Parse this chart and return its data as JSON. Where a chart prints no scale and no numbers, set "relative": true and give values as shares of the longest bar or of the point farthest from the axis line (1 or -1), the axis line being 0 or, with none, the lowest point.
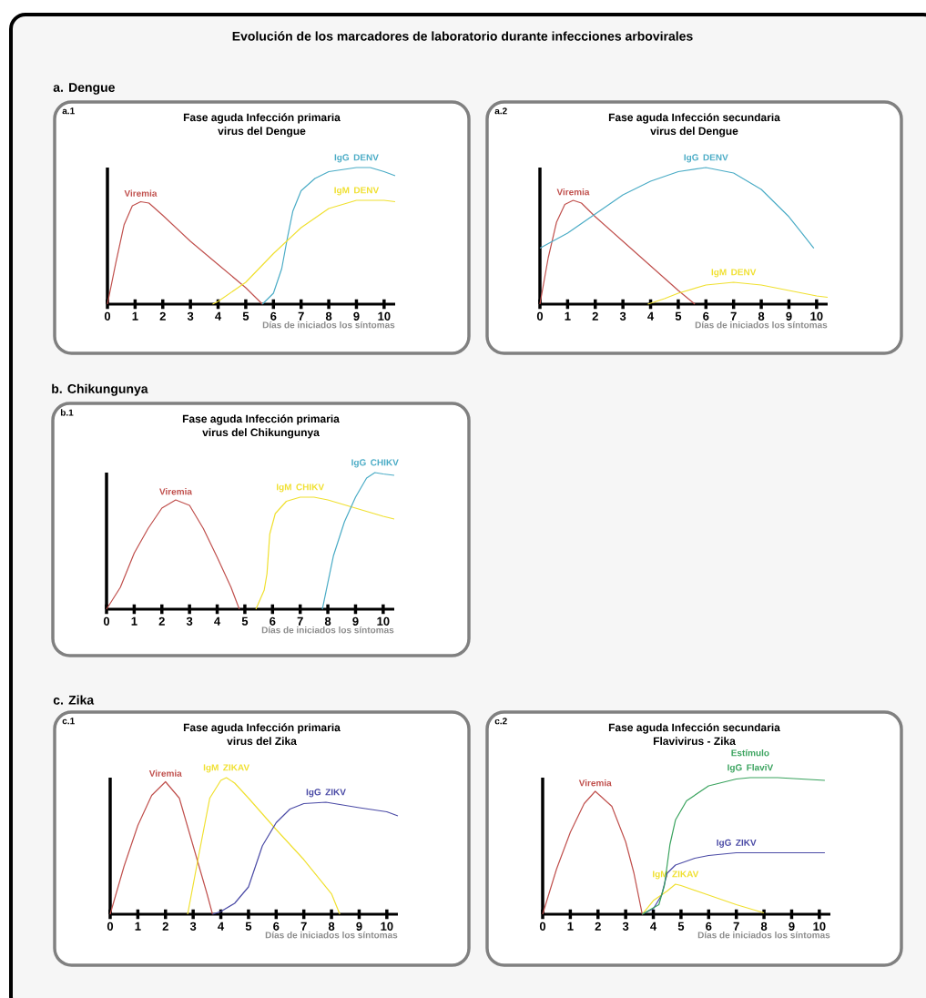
{
  "chart_data": [
    {
      "type": "line",
      "title": "Fase aguda Infección primaria",
      "subtitle": "virus del Dengue",
      "xlabel": "Días de iniciados los síntomas",
      "relative": true,
      "xlim": [
        0,
        10.4
      ],
      "xticks": [
        0,
        1,
        2,
        3,
        4,
        5,
        6,
        7,
        8,
        9,
        10
      ],
      "annotations": [
        "Evolución de los marcadores de laboratorio durante infecciones arbovirales",
        "a. Dengue",
        "a.1"
      ],
      "series": [
        {
          "name": "Viremia",
          "color": "#c0504d",
          "x": [
            0,
            0.3,
            0.6,
            0.9,
            1.2,
            1.5,
            2,
            3,
            4,
            5,
            5.6
          ],
          "values": [
            0,
            0.3,
            0.58,
            0.72,
            0.75,
            0.74,
            0.65,
            0.46,
            0.29,
            0.12,
            0
          ]
        },
        {
          "name": "IgG DENV",
          "color": "#4bacc6",
          "x": [
            5.6,
            6,
            6.3,
            6.5,
            6.7,
            7,
            7.5,
            8,
            9,
            9.5,
            10,
            10.4
          ],
          "values": [
            0,
            0.08,
            0.26,
            0.48,
            0.68,
            0.83,
            0.92,
            0.97,
            1,
            1,
            0.97,
            0.94
          ]
        },
        {
          "name": "IgM DENV",
          "color": "#f0e030",
          "x": [
            3.8,
            4,
            5,
            6,
            7,
            8,
            9,
            10,
            10.4
          ],
          "values": [
            0,
            0.02,
            0.16,
            0.37,
            0.56,
            0.7,
            0.76,
            0.76,
            0.75
          ]
        }
      ]
    },
    {
      "type": "line",
      "title": "Fase aguda Infección secundaria",
      "subtitle": "virus del Dengue",
      "xlabel": "Días de iniciados los síntomas",
      "relative": true,
      "xlim": [
        0,
        10.4
      ],
      "xticks": [
        0,
        1,
        2,
        3,
        4,
        5,
        6,
        7,
        8,
        9,
        10
      ],
      "annotations": [
        "a.2"
      ],
      "series": [
        {
          "name": "Viremia",
          "color": "#c0504d",
          "x": [
            0,
            0.3,
            0.6,
            0.9,
            1.2,
            1.5,
            2,
            3,
            4,
            5,
            5.6
          ],
          "values": [
            0,
            0.34,
            0.6,
            0.73,
            0.76,
            0.74,
            0.64,
            0.46,
            0.28,
            0.1,
            0
          ]
        },
        {
          "name": "IgG DENV",
          "color": "#4bacc6",
          "x": [
            0,
            1,
            2,
            3,
            4,
            5,
            6,
            7,
            8,
            9,
            9.9
          ],
          "values": [
            0.41,
            0.52,
            0.66,
            0.8,
            0.9,
            0.97,
            1,
            0.96,
            0.84,
            0.64,
            0.41
          ]
        },
        {
          "name": "IgM DENV",
          "color": "#f0e030",
          "x": [
            3.9,
            4.5,
            5,
            6,
            7,
            8,
            9,
            10,
            10.4
          ],
          "values": [
            0,
            0.04,
            0.08,
            0.14,
            0.16,
            0.14,
            0.1,
            0.06,
            0.05
          ]
        }
      ]
    },
    {
      "type": "line",
      "title": "Fase aguda Infección primaria",
      "subtitle": "virus del Chikungunya",
      "xlabel": "Días de iniciados los síntomas",
      "relative": true,
      "xlim": [
        0,
        10.4
      ],
      "xticks": [
        0,
        1,
        2,
        3,
        4,
        5,
        6,
        7,
        8,
        9,
        10
      ],
      "annotations": [
        "b. Chikungunya",
        "b.1"
      ],
      "series": [
        {
          "name": "Viremia",
          "color": "#c0504d",
          "x": [
            0,
            0.5,
            1,
            1.5,
            2,
            2.5,
            3,
            3.5,
            4,
            4.5,
            4.8
          ],
          "values": [
            0,
            0.16,
            0.41,
            0.59,
            0.74,
            0.8,
            0.76,
            0.59,
            0.38,
            0.16,
            0
          ]
        },
        {
          "name": "IgM CHIKV",
          "color": "#f0e030",
          "x": [
            5.4,
            5.7,
            5.8,
            5.9,
            6.1,
            6.5,
            7,
            7.5,
            8,
            9,
            10,
            10.4
          ],
          "values": [
            0,
            0.14,
            0.26,
            0.55,
            0.7,
            0.79,
            0.82,
            0.82,
            0.8,
            0.74,
            0.68,
            0.66
          ]
        },
        {
          "name": "IgG CHIKV",
          "color": "#4bacc6",
          "x": [
            7.8,
            8.2,
            8.6,
            9,
            9.4,
            9.7,
            10,
            10.4
          ],
          "values": [
            0,
            0.39,
            0.64,
            0.82,
            0.96,
            1,
            0.99,
            0.98
          ]
        }
      ]
    },
    {
      "type": "line",
      "title": "Fase aguda Infección primaria",
      "subtitle": "virus del Zika",
      "xlabel": "Días de iniciados los síntomas",
      "relative": true,
      "xlim": [
        0,
        10.4
      ],
      "xticks": [
        0,
        1,
        2,
        3,
        4,
        5,
        6,
        7,
        8,
        9,
        10
      ],
      "annotations": [
        "c. Zika",
        "c.1"
      ],
      "series": [
        {
          "name": "Viremia",
          "color": "#c0504d",
          "x": [
            0,
            0.5,
            1,
            1.5,
            2,
            2.5,
            3,
            3.5,
            3.7
          ],
          "values": [
            0,
            0.35,
            0.65,
            0.87,
            0.97,
            0.85,
            0.5,
            0.15,
            0
          ]
        },
        {
          "name": "IgM ZIKAV",
          "color": "#f0e030",
          "x": [
            2.8,
            3.2,
            3.6,
            4,
            4.2,
            4.5,
            5,
            6,
            7,
            8,
            8.3
          ],
          "values": [
            0,
            0.43,
            0.85,
            0.98,
            1,
            0.96,
            0.85,
            0.62,
            0.4,
            0.15,
            0
          ]
        },
        {
          "name": "IgG ZIKV",
          "color": "#4b4ba6",
          "x": [
            3.7,
            4,
            4.5,
            5,
            5.5,
            6,
            6.5,
            7,
            7.8,
            9,
            10,
            10.4
          ],
          "values": [
            0,
            0.02,
            0.08,
            0.2,
            0.5,
            0.67,
            0.77,
            0.81,
            0.82,
            0.78,
            0.75,
            0.72
          ]
        }
      ]
    },
    {
      "type": "line",
      "title": "Fase aguda Infección secundaria",
      "subtitle": "Flavivirus - Zika",
      "xlabel": "Días de iniciados los síntomas",
      "relative": true,
      "xlim": [
        0,
        10.4
      ],
      "xticks": [
        0,
        1,
        2,
        3,
        4,
        5,
        6,
        7,
        8,
        9,
        10
      ],
      "annotations": [
        "c.2"
      ],
      "series": [
        {
          "name": "Viremia",
          "color": "#c0504d",
          "x": [
            0,
            0.5,
            1,
            1.5,
            1.9,
            2.5,
            3,
            3.3,
            3.6
          ],
          "values": [
            0,
            0.33,
            0.6,
            0.81,
            0.9,
            0.79,
            0.53,
            0.3,
            0
          ]
        },
        {
          "name": "IgM ZIKAV",
          "color": "#f0e030",
          "x": [
            3.6,
            4,
            4.5,
            4.8,
            5,
            6,
            7,
            8
          ],
          "values": [
            0,
            0.1,
            0.17,
            0.22,
            0.21,
            0.14,
            0.07,
            0.01
          ]
        },
        {
          "name": "IgG ZIKV",
          "color": "#4b4ba6",
          "x": [
            3.6,
            4,
            4.3,
            4.5,
            4.8,
            5.5,
            6,
            7,
            8,
            10.2
          ],
          "values": [
            0,
            0.04,
            0.14,
            0.3,
            0.36,
            0.41,
            0.43,
            0.45,
            0.45,
            0.45
          ]
        },
        {
          "name": "Estímulo IgG FlaviV",
          "color": "#3aa35e",
          "x": [
            3.6,
            4.2,
            4.4,
            4.6,
            4.8,
            5.2,
            6,
            7,
            7.5,
            8.5,
            10.2
          ],
          "values": [
            0,
            0.07,
            0.21,
            0.51,
            0.69,
            0.83,
            0.94,
            0.99,
            1,
            1,
            0.98
          ]
        }
      ]
    }
  ]
}
